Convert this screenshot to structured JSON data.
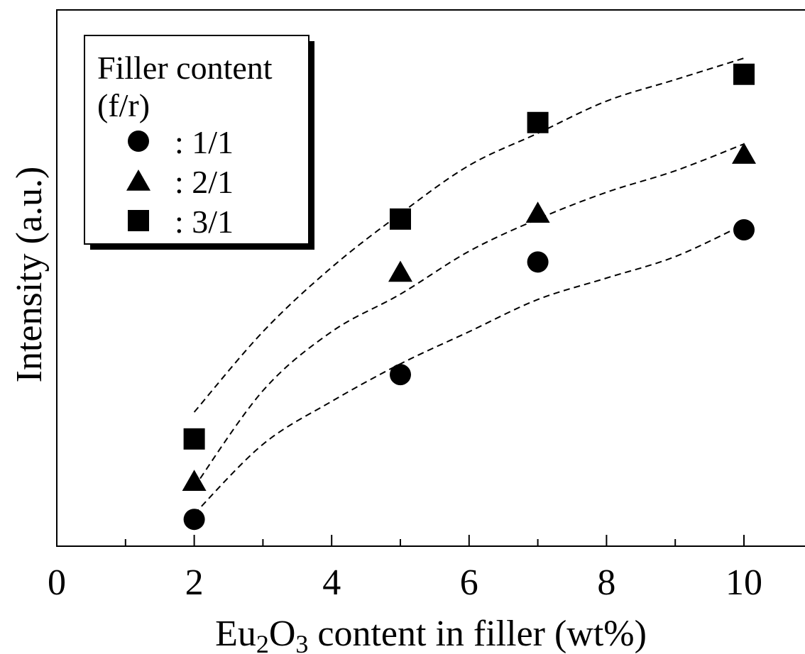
{
  "chart_data": {
    "type": "scatter",
    "title": "",
    "xlabel": {
      "base": "Eu",
      "sub1": "2",
      "mid": "O",
      "sub2": "3",
      "rest": " content in filler (wt%)"
    },
    "ylabel": "Intensity (a.u.)",
    "xlim": [
      0,
      11
    ],
    "ylim": [
      0,
      1
    ],
    "x_ticks": [
      0,
      2,
      4,
      6,
      8,
      10
    ],
    "x_tick_labels": [
      "0",
      "2",
      "4",
      "6",
      "8",
      "10"
    ],
    "x_minor_ticks": [
      1,
      3,
      5,
      7,
      9
    ],
    "grid": false,
    "legend": {
      "placement": "top-left",
      "title_line1": "Filler content",
      "title_line2": "(f/r)"
    },
    "series": [
      {
        "name": ": 1/1",
        "marker": "circle",
        "x": [
          2,
          5,
          7,
          10
        ],
        "y": [
          0.05,
          0.32,
          0.53,
          0.59
        ],
        "fit_curve": [
          [
            2,
            0.06
          ],
          [
            3,
            0.19
          ],
          [
            4,
            0.27
          ],
          [
            5,
            0.34
          ],
          [
            6,
            0.4
          ],
          [
            7,
            0.46
          ],
          [
            8,
            0.5
          ],
          [
            9,
            0.54
          ],
          [
            10,
            0.6
          ]
        ]
      },
      {
        "name": ": 2/1",
        "marker": "triangle",
        "x": [
          2,
          5,
          7,
          10
        ],
        "y": [
          0.12,
          0.51,
          0.62,
          0.73
        ],
        "fit_curve": [
          [
            2,
            0.11
          ],
          [
            3,
            0.29
          ],
          [
            4,
            0.4
          ],
          [
            5,
            0.47
          ],
          [
            6,
            0.55
          ],
          [
            7,
            0.61
          ],
          [
            8,
            0.66
          ],
          [
            9,
            0.7
          ],
          [
            10,
            0.75
          ]
        ]
      },
      {
        "name": ": 3/1",
        "marker": "square",
        "x": [
          2,
          5,
          7,
          10
        ],
        "y": [
          0.2,
          0.61,
          0.79,
          0.88
        ],
        "fit_curve": [
          [
            2,
            0.25
          ],
          [
            3,
            0.4
          ],
          [
            4,
            0.52
          ],
          [
            5,
            0.62
          ],
          [
            6,
            0.71
          ],
          [
            7,
            0.77
          ],
          [
            8,
            0.83
          ],
          [
            9,
            0.87
          ],
          [
            10,
            0.91
          ]
        ]
      }
    ]
  }
}
